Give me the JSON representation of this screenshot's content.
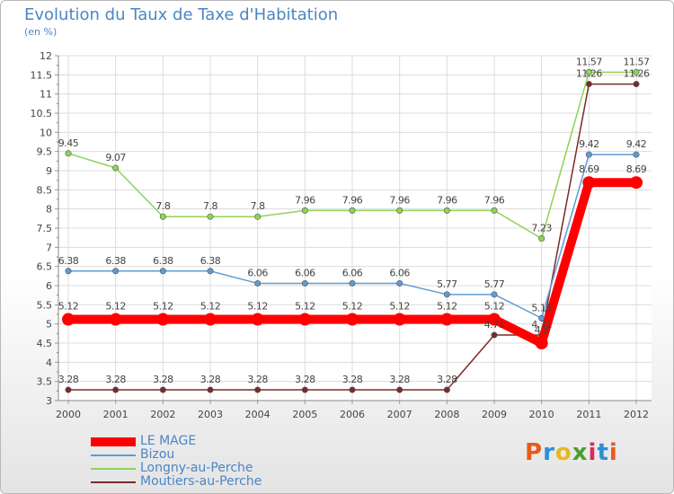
{
  "title": "Evolution du Taux de Taxe d'Habitation",
  "subtitle": "(en %)",
  "logo": "Proxiti",
  "chart_data": {
    "type": "line",
    "x": [
      "2000",
      "2001",
      "2002",
      "2003",
      "2004",
      "2005",
      "2006",
      "2007",
      "2008",
      "2009",
      "2010",
      "2011",
      "2012"
    ],
    "ylim": [
      3,
      12
    ],
    "yticks": [
      "3",
      "3.5",
      "4",
      "4.5",
      "5",
      "5.5",
      "6",
      "6.5",
      "7",
      "7.5",
      "8",
      "8.5",
      "9",
      "9.5",
      "10",
      "10.5",
      "11",
      "11.5",
      "12"
    ],
    "grid": true,
    "legend_position": "bottom-left",
    "series": [
      {
        "name": "LE MAGE",
        "color": "#ff0000",
        "values": [
          5.12,
          5.12,
          5.12,
          5.12,
          5.12,
          5.12,
          5.12,
          5.12,
          5.12,
          5.12,
          4.5,
          8.69,
          8.69
        ],
        "labels": [
          "5.12",
          "5.12",
          "5.12",
          "5.12",
          "5.12",
          "5.12",
          "5.12",
          "5.12",
          "5.12",
          "5.12",
          "4.5",
          "8.69",
          "8.69"
        ]
      },
      {
        "name": "Bizou",
        "color": "#5f9bd1",
        "values": [
          6.38,
          6.38,
          6.38,
          6.38,
          6.06,
          6.06,
          6.06,
          6.06,
          5.77,
          5.77,
          5.15,
          9.42,
          9.42
        ],
        "labels": [
          "6.38",
          "6.38",
          "6.38",
          "6.38",
          "6.06",
          "6.06",
          "6.06",
          "6.06",
          "5.77",
          "5.77",
          "5.15",
          "9.42",
          "9.42"
        ]
      },
      {
        "name": "Longny-au-Perche",
        "color": "#8fd35a",
        "values": [
          9.45,
          9.07,
          7.8,
          7.8,
          7.8,
          7.96,
          7.96,
          7.96,
          7.96,
          7.96,
          7.23,
          11.57,
          11.57
        ],
        "labels": [
          "9.45",
          "9.07",
          "7.8",
          "7.8",
          "7.8",
          "7.96",
          "7.96",
          "7.96",
          "7.96",
          "7.96",
          "7.23",
          "11.57",
          "11.57"
        ]
      },
      {
        "name": "Moutiers-au-Perche",
        "color": "#7a2a2a",
        "values": [
          3.28,
          3.28,
          3.28,
          3.28,
          3.28,
          3.28,
          3.28,
          3.28,
          3.28,
          4.71,
          4.71,
          11.26,
          11.26
        ],
        "labels": [
          "3.28",
          "3.28",
          "3.28",
          "3.28",
          "3.28",
          "3.28",
          "3.28",
          "3.28",
          "3.28",
          "4.71",
          "4.71",
          "11.26",
          "11.26"
        ]
      }
    ]
  }
}
